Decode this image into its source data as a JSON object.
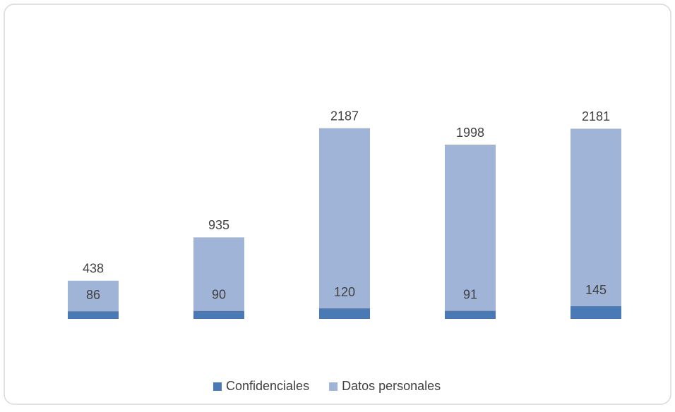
{
  "chart_data": {
    "type": "bar",
    "overlap": true,
    "categories": [
      null,
      null,
      null,
      null,
      null
    ],
    "series": [
      {
        "name": "Confidenciales",
        "color": "#4a7ab5",
        "values": [
          86,
          90,
          120,
          91,
          145
        ]
      },
      {
        "name": "Datos personales",
        "color": "#a0b4d8",
        "values": [
          438,
          935,
          2187,
          1998,
          2181
        ]
      }
    ],
    "ylim": [
      0,
      2500
    ],
    "legend": "bottom"
  }
}
